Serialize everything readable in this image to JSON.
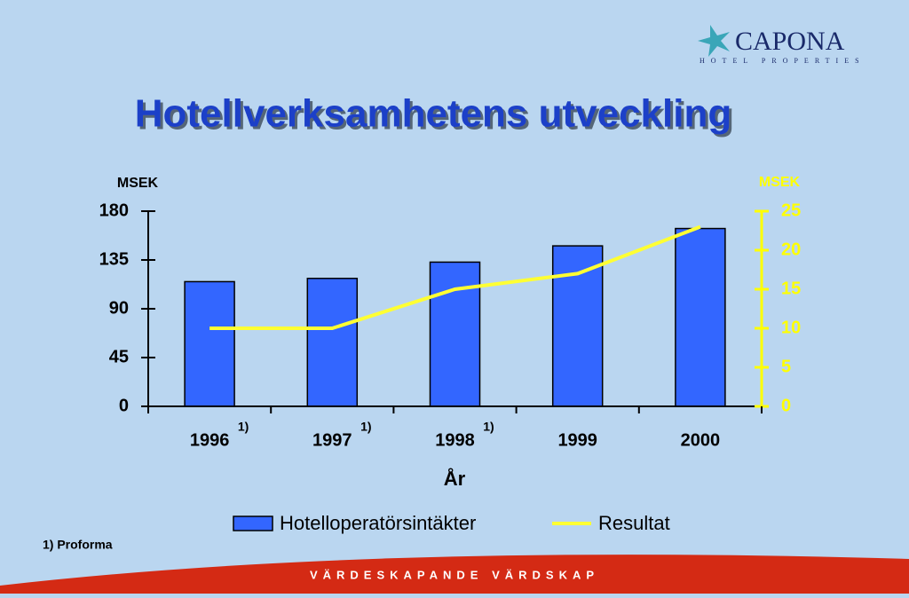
{
  "logo": {
    "name": "CAPONA",
    "tagline": "HOTEL PROPERTIES"
  },
  "footnote": "1) Proforma",
  "banner": "VÄRDESKAPANDE VÄRDSKAP",
  "chart_data": {
    "type": "bar",
    "title": "Hotellverksamhetens utveckling",
    "y_label": "MSEK",
    "y2_label": "MSEK",
    "x_label": "År",
    "categories": [
      "1996",
      "1997",
      "1998",
      "1999",
      "2000"
    ],
    "category_notes": [
      "1)",
      "1)",
      "1)",
      null,
      null
    ],
    "series": [
      {
        "name": "Hotelloperatörsintäkter",
        "type": "bar",
        "color": "#3366ff",
        "values": [
          115,
          118,
          133,
          148,
          164
        ]
      },
      {
        "name": "Resultat",
        "type": "line",
        "axis": "y2",
        "color": "#ffff33",
        "values": [
          10,
          10,
          15,
          17,
          23
        ]
      }
    ],
    "ylim": [
      0,
      180
    ],
    "yticks": [
      0,
      45,
      90,
      135,
      180
    ],
    "y2lim": [
      0,
      25
    ],
    "y2ticks": [
      0,
      5,
      10,
      15,
      20,
      25
    ],
    "y2_color": "#ffff00",
    "legend": "bottom"
  }
}
